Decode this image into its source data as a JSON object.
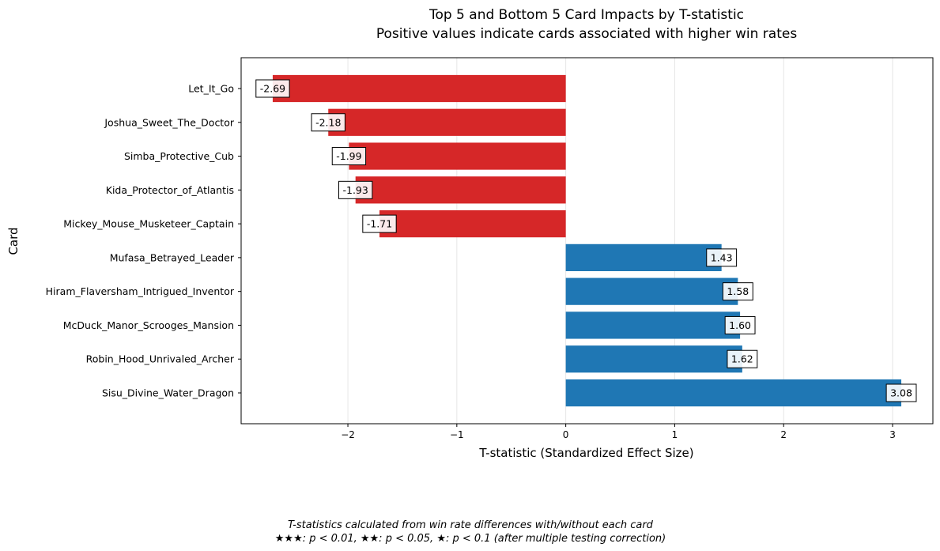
{
  "chart_data": {
    "type": "bar",
    "orientation": "horizontal",
    "title": "Top 5 and Bottom 5 Card Impacts by T-statistic",
    "subtitle": "Positive values indicate cards associated with higher win rates",
    "xlabel": "T-statistic (Standardized Effect Size)",
    "ylabel": "Card",
    "xlim": [
      -2.98,
      3.37
    ],
    "xticks": [
      {
        "value": -2,
        "label": "−2"
      },
      {
        "value": -1,
        "label": "−1"
      },
      {
        "value": 0,
        "label": "0"
      },
      {
        "value": 1,
        "label": "1"
      },
      {
        "value": 2,
        "label": "2"
      },
      {
        "value": 3,
        "label": "3"
      }
    ],
    "grid": "vertical",
    "categories": [
      "Let_It_Go",
      "Joshua_Sweet_The_Doctor",
      "Simba_Protective_Cub",
      "Kida_Protector_of_Atlantis",
      "Mickey_Mouse_Musketeer_Captain",
      "Mufasa_Betrayed_Leader",
      "Hiram_Flaversham_Intrigued_Inventor",
      "McDuck_Manor_Scrooges_Mansion",
      "Robin_Hood_Unrivaled_Archer",
      "Sisu_Divine_Water_Dragon"
    ],
    "values": [
      -2.69,
      -2.18,
      -1.99,
      -1.93,
      -1.71,
      1.43,
      1.58,
      1.6,
      1.62,
      3.08
    ],
    "value_labels": [
      "-2.69",
      "-2.18",
      "-1.99",
      "-1.93",
      "-1.71",
      "1.43",
      "1.58",
      "1.60",
      "1.62",
      "3.08"
    ],
    "colors": {
      "negative": "#d62728",
      "positive": "#1f77b4"
    }
  },
  "footnote": {
    "line1": "T-statistics calculated from win rate differences with/without each card",
    "line2": "★★★: p < 0.01, ★★: p < 0.05, ★: p < 0.1 (after multiple testing correction)"
  }
}
